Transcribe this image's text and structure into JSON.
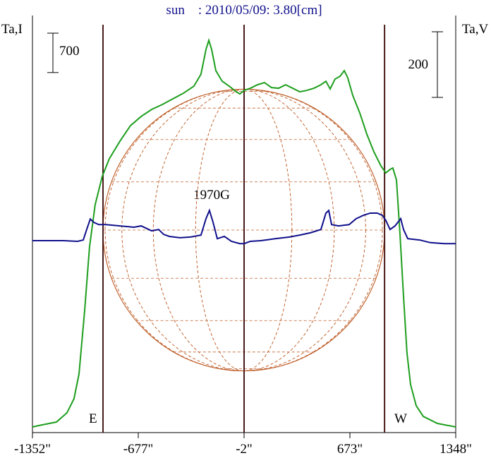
{
  "chart_data": {
    "type": "line",
    "title": "sun    : 2010/05/09: 3.80[cm]",
    "y_label": "Ta,I",
    "y2_label": "Ta,V",
    "xlim": [
      -1352,
      1348
    ],
    "xticks": [
      {
        "value": -1352,
        "label": "-1352\""
      },
      {
        "value": -677,
        "label": "-677\""
      },
      {
        "value": -2,
        "label": "-2\""
      },
      {
        "value": 673,
        "label": "673\""
      },
      {
        "value": 1348,
        "label": "1348\""
      }
    ],
    "ylim": [
      0,
      7400
    ],
    "y2lim": [
      -585,
      684
    ],
    "scale_bars": [
      {
        "value": 700,
        "axis": "y"
      },
      {
        "value": 200,
        "axis": "y2"
      }
    ],
    "limb_lines": [
      -902,
      -2,
      894
    ],
    "limb_labels": [
      "E",
      "W"
    ],
    "source_label": "1970G",
    "series": [
      {
        "color": "#1e9e1e",
        "axis": "y",
        "x": [
          -1352,
          -1289,
          -1199,
          -1132,
          -1087,
          -1055,
          -1019,
          -988,
          -952,
          -907,
          -862,
          -794,
          -727,
          -659,
          -592,
          -524,
          -457,
          -389,
          -322,
          -277,
          -245,
          -227,
          -209,
          -182,
          -142,
          -97,
          -52,
          -29,
          -2,
          38,
          83,
          128,
          173,
          218,
          263,
          308,
          353,
          398,
          443,
          488,
          520,
          547,
          578,
          610,
          637,
          659,
          691,
          736,
          781,
          826,
          871,
          902,
          929,
          947,
          970,
          992,
          1015,
          1037,
          1060,
          1096,
          1141,
          1231,
          1348
        ],
        "values": [
          100,
          138,
          188,
          351,
          602,
          1041,
          2169,
          3298,
          4050,
          4552,
          4866,
          5179,
          5455,
          5618,
          5743,
          5831,
          5931,
          6032,
          6157,
          6370,
          6809,
          6972,
          6809,
          6433,
          6245,
          6157,
          6057,
          6019,
          6082,
          6120,
          6182,
          6220,
          6132,
          6120,
          6182,
          6120,
          6057,
          6082,
          6120,
          6182,
          6245,
          6107,
          6283,
          6333,
          6433,
          6308,
          5994,
          5681,
          5304,
          4991,
          4740,
          4615,
          4677,
          4703,
          4489,
          3549,
          2420,
          1417,
          853,
          477,
          288,
          163,
          100
        ]
      },
      {
        "color": "#10108c",
        "axis": "y2",
        "x": [
          -1352,
          -1154,
          -1064,
          -1028,
          -1006,
          -983,
          -961,
          -929,
          -884,
          -794,
          -704,
          -659,
          -592,
          -547,
          -515,
          -479,
          -412,
          -344,
          -277,
          -245,
          -223,
          -200,
          -173,
          -128,
          -83,
          -29,
          -2,
          38,
          106,
          196,
          286,
          353,
          421,
          488,
          520,
          538,
          556,
          601,
          668,
          713,
          758,
          803,
          848,
          880,
          902,
          929,
          961,
          997,
          1015,
          1042,
          1118,
          1186,
          1276,
          1348
        ],
        "values": [
          0,
          0,
          -2,
          2,
          34,
          66,
          56,
          49,
          49,
          45,
          41,
          45,
          30,
          34,
          19,
          13,
          9,
          11,
          17,
          67,
          92,
          56,
          6,
          13,
          -2,
          -9,
          -9,
          -2,
          0,
          6,
          11,
          17,
          24,
          34,
          84,
          92,
          49,
          45,
          49,
          67,
          77,
          84,
          84,
          77,
          62,
          34,
          45,
          67,
          34,
          6,
          2,
          -6,
          -9,
          -9
        ]
      }
    ]
  }
}
